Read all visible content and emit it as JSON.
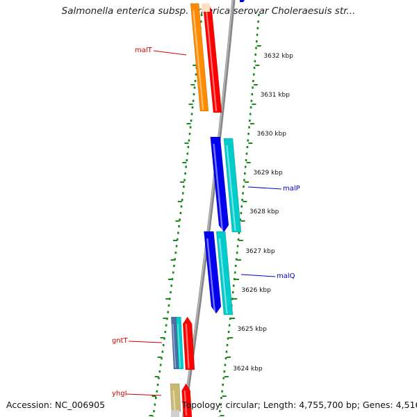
{
  "header": {
    "title": "Salmonella enterica subsp. enterica serovar Choleraesuis str..."
  },
  "footer": {
    "accession": "Accession: NC_006905",
    "summary": "Topology: circular; Length: 4,755,700 bp; Genes: 4,516"
  },
  "ruler": {
    "unit_suffix": " kbp",
    "ticks": [
      3632,
      3631,
      3630,
      3629,
      3628,
      3627,
      3626,
      3625,
      3624
    ]
  },
  "genes": [
    {
      "name": "malT",
      "strand": "forward",
      "label_color": "#cc0000"
    },
    {
      "name": "malP",
      "strand": "reverse",
      "label_color": "#0000cc"
    },
    {
      "name": "malQ",
      "strand": "reverse",
      "label_color": "#0000cc"
    },
    {
      "name": "gntT",
      "strand": "forward",
      "label_color": "#cc0000"
    },
    {
      "name": "yhgI",
      "strand": "forward",
      "label_color": "#cc0000"
    }
  ],
  "colors": {
    "forward_cds": "#ff0000",
    "forward_feature": "#ff8c00",
    "reverse_cds": "#0000ee",
    "reverse_feature": "#00cccc",
    "backbone": "#888888",
    "dotted_track": "#1a8a1a",
    "tick_label": "#111111"
  }
}
